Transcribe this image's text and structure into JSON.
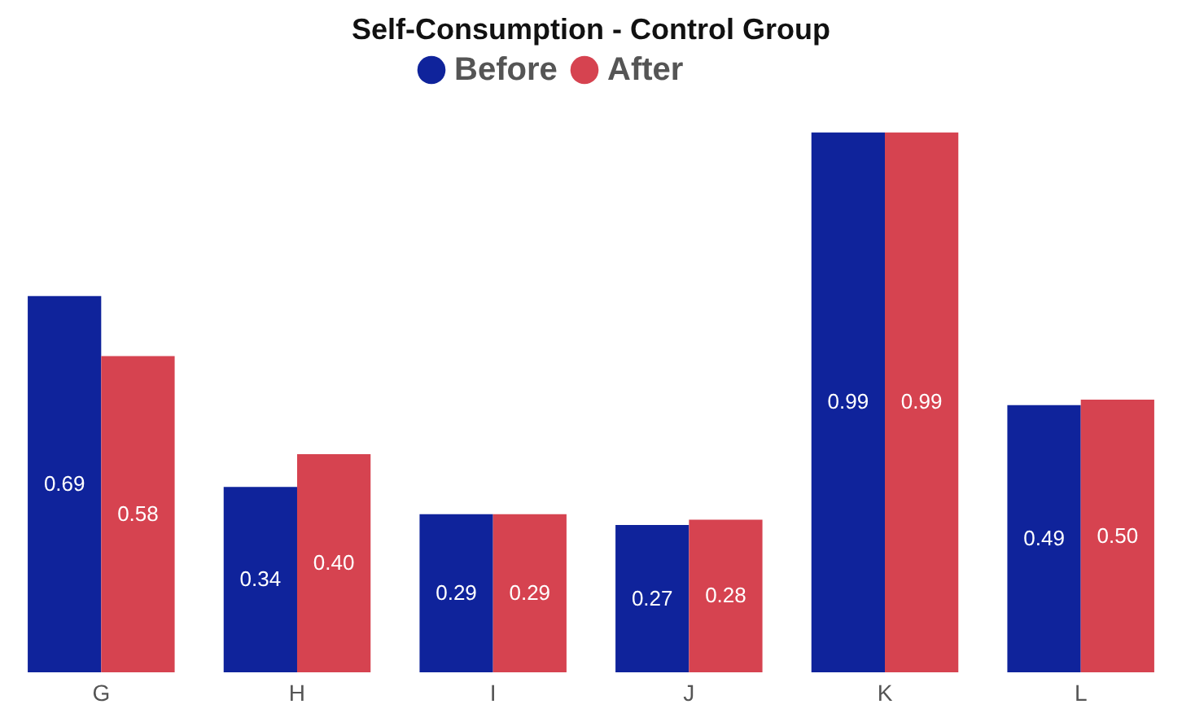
{
  "chart_data": {
    "type": "bar",
    "title": "Self-Consumption - Control Group",
    "categories": [
      "G",
      "H",
      "I",
      "J",
      "K",
      "L"
    ],
    "series": [
      {
        "name": "Before",
        "color": "#0f239b",
        "values": [
          0.69,
          0.34,
          0.29,
          0.27,
          0.99,
          0.49
        ],
        "value_labels": [
          "0.69",
          "0.34",
          "0.29",
          "0.27",
          "0.99",
          "0.49"
        ]
      },
      {
        "name": "After",
        "color": "#d64350",
        "values": [
          0.58,
          0.4,
          0.29,
          0.28,
          0.99,
          0.5
        ],
        "value_labels": [
          "0.58",
          "0.40",
          "0.29",
          "0.28",
          "0.99",
          "0.50"
        ]
      }
    ],
    "ylim": [
      0,
      1
    ],
    "legend": "top",
    "grid": false
  }
}
